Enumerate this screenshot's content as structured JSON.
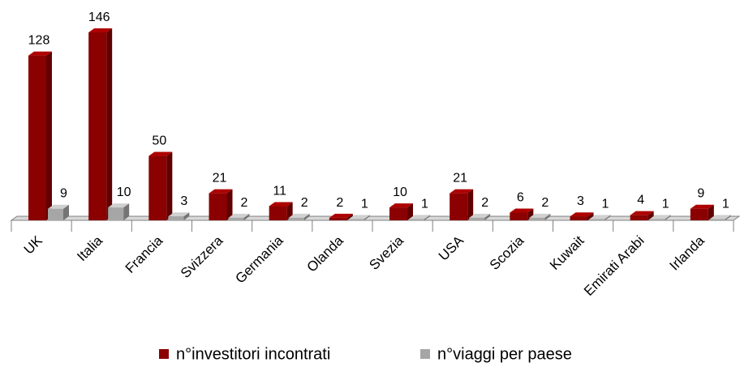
{
  "chart_data": {
    "type": "bar3d",
    "categories": [
      "UK",
      "Italia",
      "Francia",
      "Svizzera",
      "Germania",
      "Olanda",
      "Svezia",
      "USA",
      "Scozia",
      "Kuwait",
      "Emirati Arabi",
      "Irlanda"
    ],
    "series": [
      {
        "name": "n°investitori incontrati",
        "color": "#8b0000",
        "values": [
          128,
          146,
          50,
          21,
          11,
          2,
          10,
          21,
          6,
          3,
          4,
          9
        ]
      },
      {
        "name": "n°viaggi per paese",
        "color": "#a6a6a6",
        "values": [
          9,
          10,
          3,
          2,
          2,
          1,
          1,
          2,
          2,
          1,
          1,
          1
        ]
      }
    ]
  }
}
